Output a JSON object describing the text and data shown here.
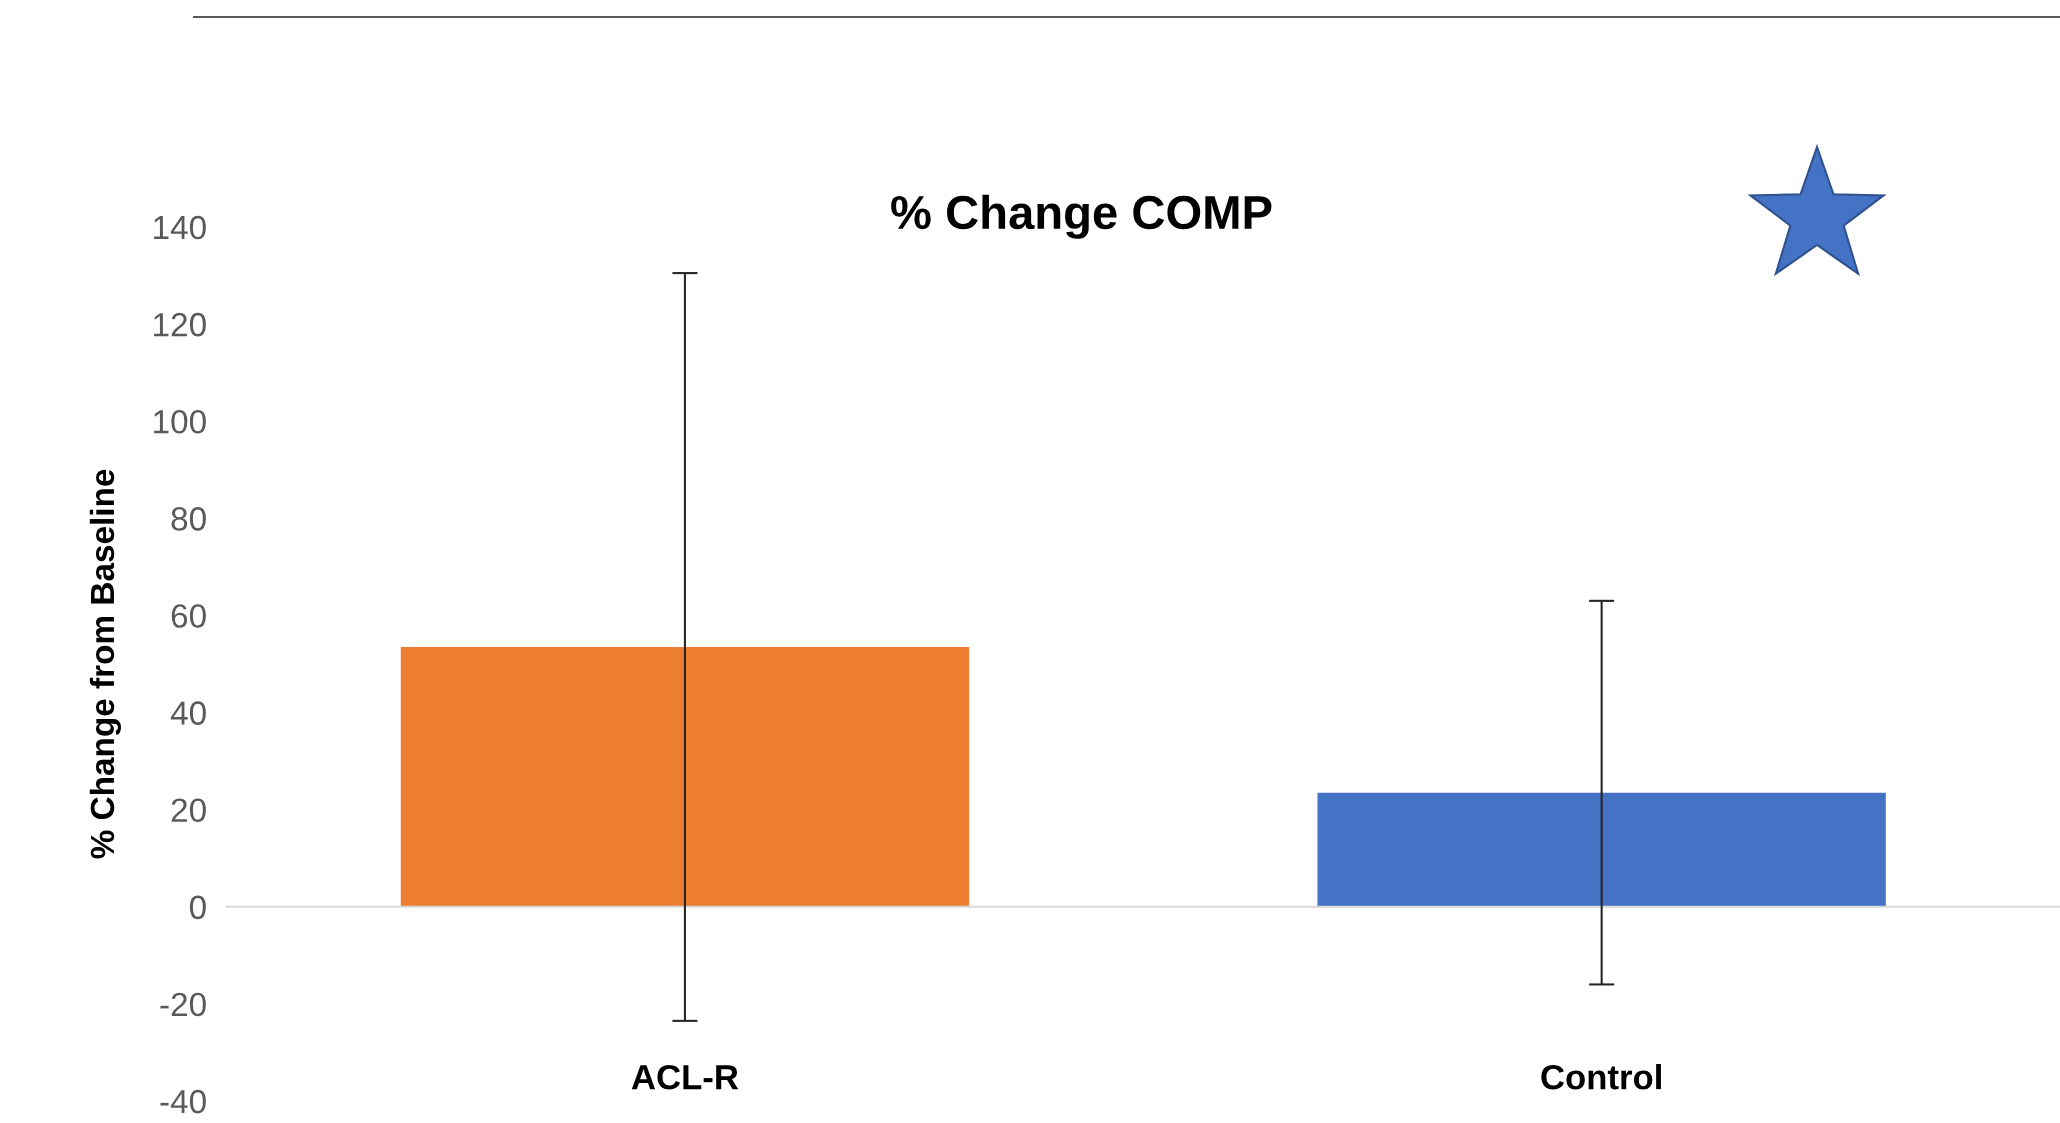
{
  "chart_data": {
    "type": "bar",
    "title": "% Change COMP",
    "ylabel": "% Change from Baseline",
    "categories": [
      "ACL-R",
      "Control"
    ],
    "values": [
      53.5,
      23.5
    ],
    "colors": [
      "#ed7d31",
      "#4472c4"
    ],
    "errors": [
      77,
      39.5
    ],
    "ylim": [
      -40,
      140
    ],
    "yticks": [
      -40,
      -20,
      0,
      20,
      40,
      60,
      80,
      100,
      120,
      140
    ],
    "grid": false,
    "legend": false
  }
}
